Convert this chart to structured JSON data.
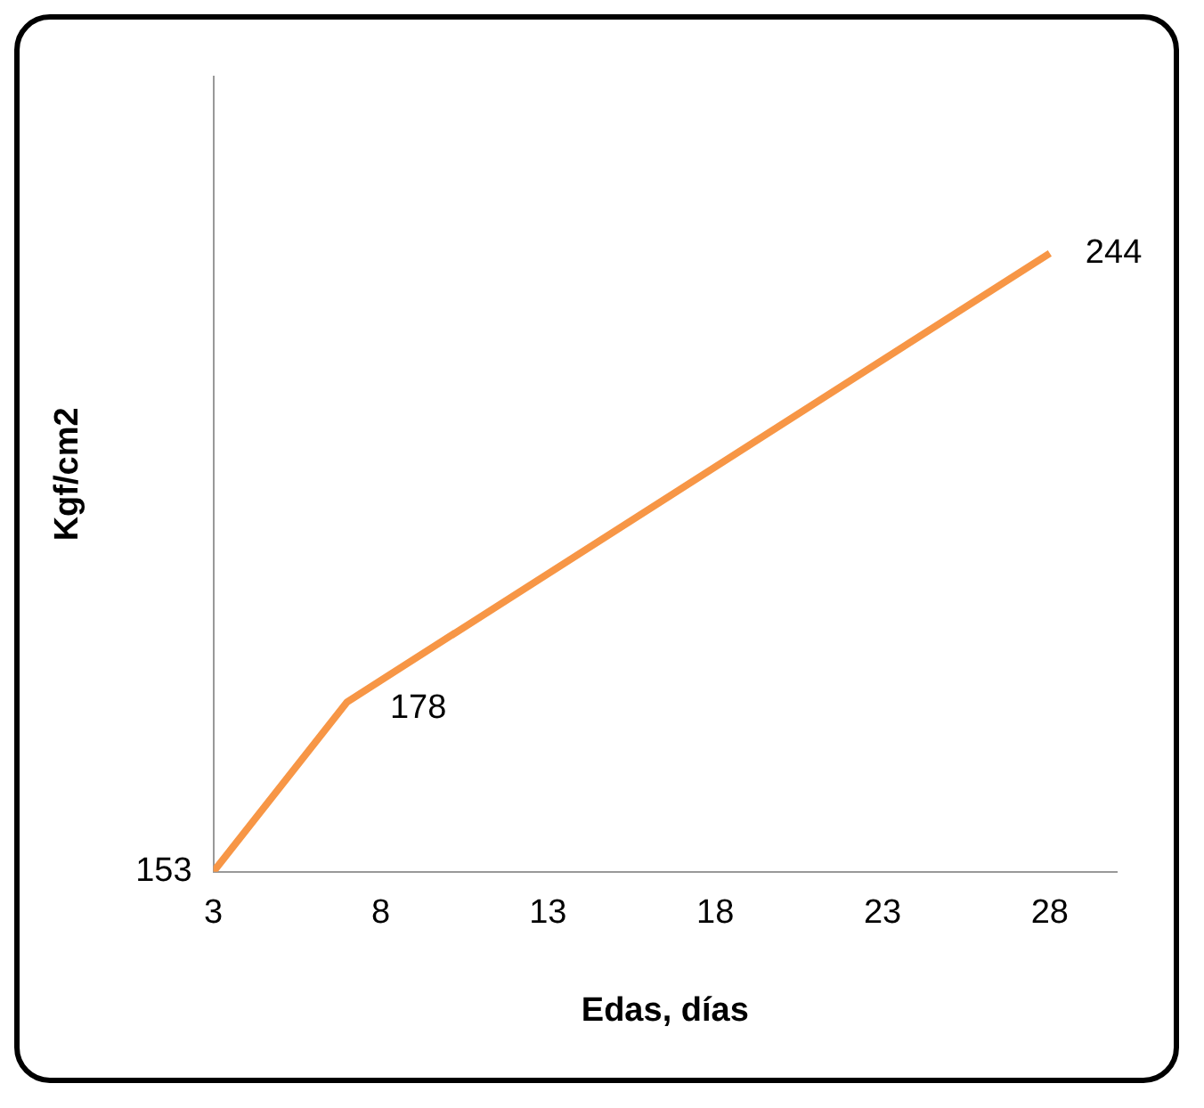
{
  "chart_data": {
    "type": "line",
    "xlabel": "Edas, días",
    "ylabel": "Kgf/cm2",
    "x": [
      3,
      7,
      28
    ],
    "series": [
      {
        "color": "#f79646",
        "values": [
          153,
          178,
          244
        ]
      }
    ],
    "xlim": [
      3,
      30
    ],
    "xticks": [
      3,
      8,
      13,
      18,
      23,
      28
    ],
    "ylim": [
      153,
      270
    ],
    "tick_labels": "x",
    "grid": false,
    "legend": false,
    "marker": "none",
    "line_style": "solid",
    "data_labels": true
  }
}
